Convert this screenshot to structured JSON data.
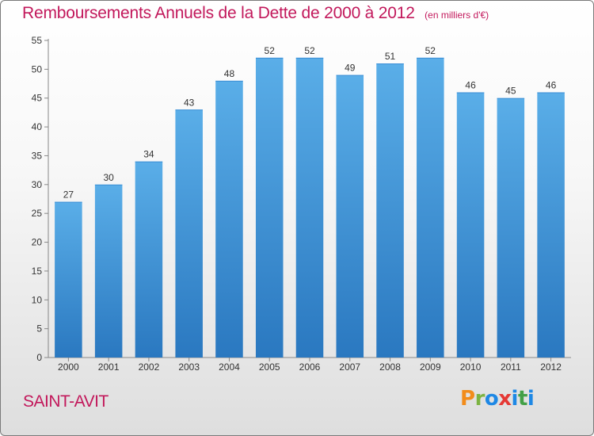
{
  "header": {
    "title": "Remboursements Annuels de la Dette de 2000 à 2012",
    "subtitle": "(en milliers d'€)"
  },
  "footer": {
    "place": "SAINT-AVIT",
    "logo_text": "Proxiti",
    "logo_colors": [
      "#f28c1b",
      "#7cb342",
      "#1e88e5",
      "#e53935",
      "#1e88e5",
      "#43a047",
      "#1e88e5"
    ]
  },
  "chart_data": {
    "type": "bar",
    "title": "Remboursements Annuels de la Dette de 2000 à 2012",
    "subtitle": "(en milliers d'€)",
    "categories": [
      "2000",
      "2001",
      "2002",
      "2003",
      "2004",
      "2005",
      "2006",
      "2007",
      "2008",
      "2009",
      "2010",
      "2011",
      "2012"
    ],
    "values": [
      27,
      30,
      34,
      43,
      48,
      52,
      52,
      49,
      51,
      52,
      46,
      45,
      46
    ],
    "ylim": [
      0,
      55
    ],
    "yticks": [
      0,
      5,
      10,
      15,
      20,
      25,
      30,
      35,
      40,
      45,
      50,
      55
    ],
    "grid": false,
    "bar_color_light": "#5aaee8",
    "bar_color_dark": "#2a78c0"
  }
}
